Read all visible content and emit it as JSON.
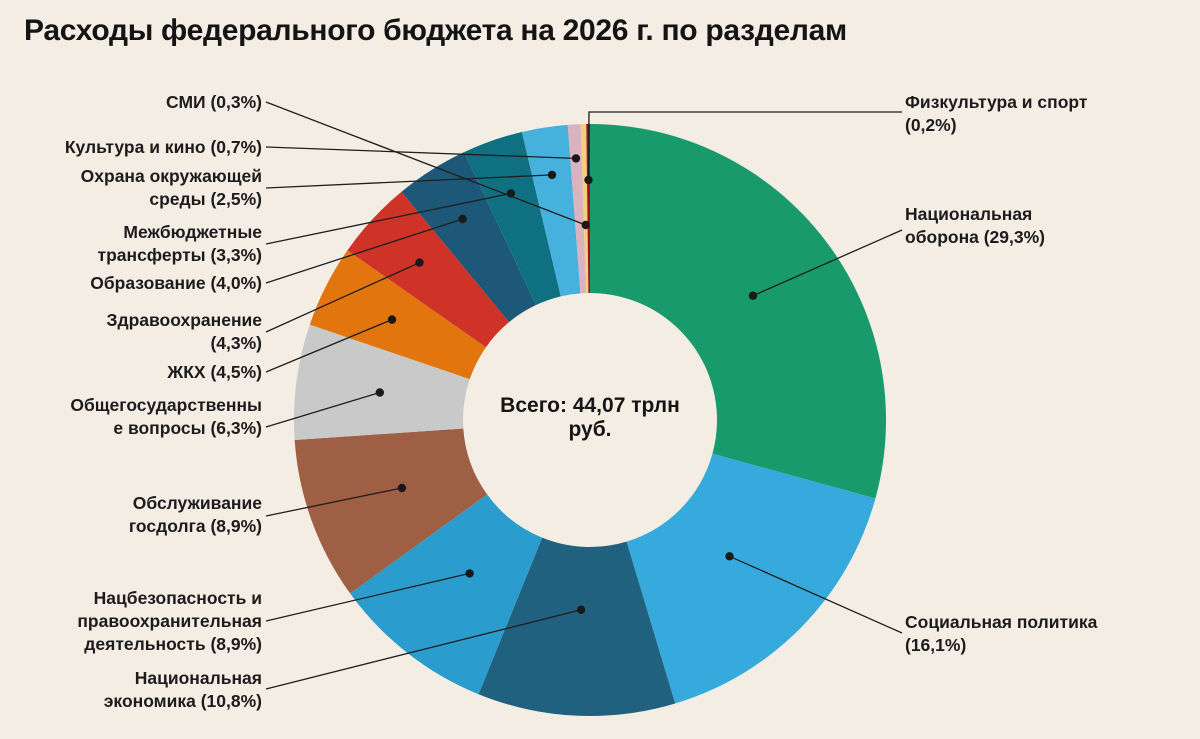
{
  "page": {
    "title": "Расходы федерального бюджета на 2026 г. по разделам",
    "background": "#f3ede4"
  },
  "chart_data": {
    "type": "pie",
    "subtype": "donut",
    "title": "Расходы федерального бюджета на 2026 г. по разделам",
    "center_label": "Всего: 44,07 трлн\nруб.",
    "total": "44,07 трлн руб.",
    "units": "percent_of_total",
    "start_angle_deg": 0,
    "direction": "clockwise",
    "segments": [
      {
        "name": "Национальная оборона",
        "pct": 29.3,
        "display": "Национальная\nоборона (29,3%)",
        "color": "#189a6c"
      },
      {
        "name": "Социальная политика",
        "pct": 16.1,
        "display": "Социальная политика\n(16,1%)",
        "color": "#36aadc"
      },
      {
        "name": "Национальная экономика",
        "pct": 10.8,
        "display": "Национальная\nэкономика (10,8%)",
        "color": "#20617f"
      },
      {
        "name": "Нацбезопасность и правоохранительная деятельность",
        "pct": 8.9,
        "display": "Нацбезопасность и\nправоохранительная\nдеятельность (8,9%)",
        "color": "#2b9cce"
      },
      {
        "name": "Обслуживание госдолга",
        "pct": 8.9,
        "display": "Обслуживание\nгосдолга (8,9%)",
        "color": "#9e5f45"
      },
      {
        "name": "Общегосударственные вопросы",
        "pct": 6.3,
        "display": "Общегосударственны\nе вопросы (6,3%)",
        "color": "#c9c9c9"
      },
      {
        "name": "ЖКХ",
        "pct": 4.5,
        "display": "ЖКХ (4,5%)",
        "color": "#e2750d"
      },
      {
        "name": "Здравоохранение",
        "pct": 4.3,
        "display": "Здравоохранение\n(4,3%)",
        "color": "#cf3226"
      },
      {
        "name": "Образование",
        "pct": 4.0,
        "display": "Образование (4,0%)",
        "color": "#1d5878"
      },
      {
        "name": "Межбюджетные трансферты",
        "pct": 3.3,
        "display": "Межбюджетные\nтрансферты (3,3%)",
        "color": "#0e7080"
      },
      {
        "name": "Охрана окружающей среды",
        "pct": 2.5,
        "display": "Охрана окружающей\nсреды (2,5%)",
        "color": "#46b1dd"
      },
      {
        "name": "Культура и кино",
        "pct": 0.7,
        "display": "Культура и кино (0,7%)",
        "color": "#d9b4be"
      },
      {
        "name": "СМИ",
        "pct": 0.3,
        "display": "СМИ (0,3%)",
        "color": "#f2d07e"
      },
      {
        "name": "Физкультура и спорт",
        "pct": 0.2,
        "display": "Физкультура и спорт\n(0,2%)",
        "color": "#a31216"
      }
    ]
  }
}
